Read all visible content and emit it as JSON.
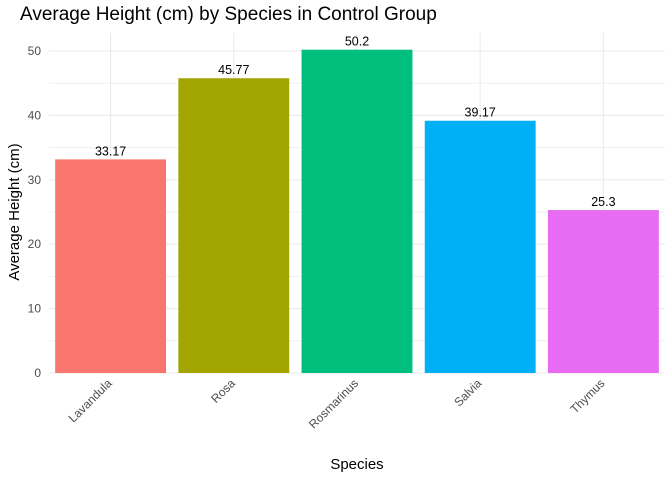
{
  "chart_data": {
    "type": "bar",
    "title": "Average Height (cm) by Species in Control Group",
    "xlabel": "Species",
    "ylabel": "Average Height (cm)",
    "categories": [
      "Lavandula",
      "Rosa",
      "Rosmarinus",
      "Salvia",
      "Thymus"
    ],
    "values": [
      33.17,
      45.77,
      50.2,
      39.17,
      25.3
    ],
    "value_labels": [
      "33.17",
      "45.77",
      "50.2",
      "39.17",
      "25.3"
    ],
    "colors": [
      "#F8766D",
      "#A3A500",
      "#00BF7D",
      "#00B0F6",
      "#E76BF3"
    ],
    "ylim": [
      0,
      52.6
    ],
    "yticks": [
      0,
      10,
      20,
      30,
      40,
      50
    ],
    "grid": true,
    "legend": "none"
  }
}
